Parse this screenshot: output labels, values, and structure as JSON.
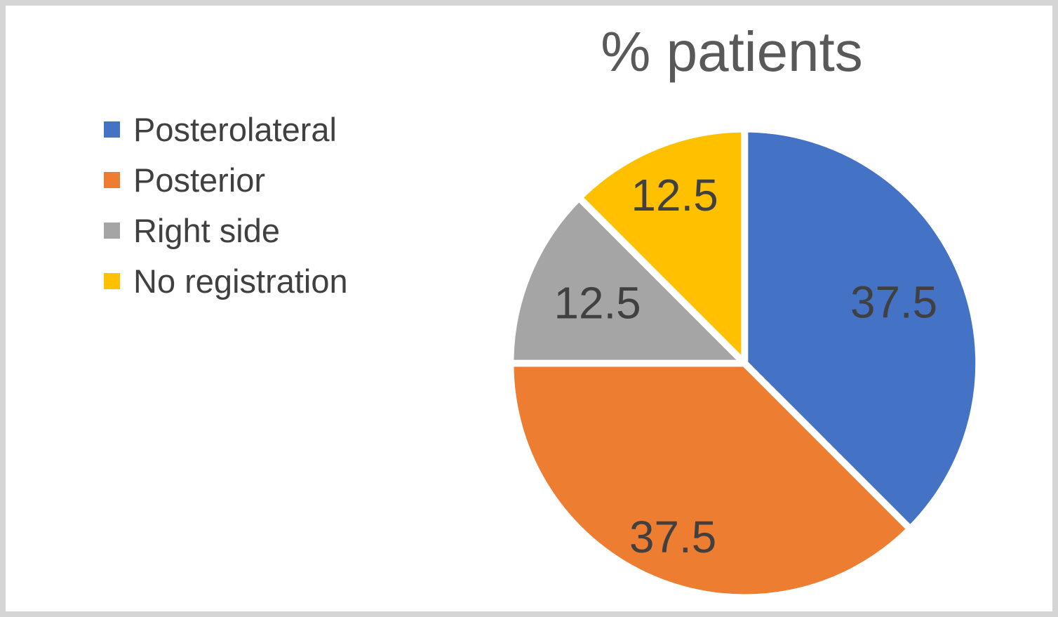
{
  "chart_data": {
    "type": "pie",
    "title": "% patients",
    "legend_position": "left",
    "start_angle_deg": -90,
    "direction": "clockwise",
    "separator_color": "#FFFFFF",
    "label_color": "#404040",
    "title_color": "#595959",
    "slices": [
      {
        "name": "Posterolateral",
        "value": 37.5,
        "label": "37.5",
        "color": "#4472C4",
        "label_radius": 0.69
      },
      {
        "name": "Posterior",
        "value": 37.5,
        "label": "37.5",
        "color": "#ED7D31",
        "label_radius": 0.8
      },
      {
        "name": "Right side",
        "value": 12.5,
        "label": "12.5",
        "color": "#A5A5A5",
        "label_radius": 0.68
      },
      {
        "name": "No registration",
        "value": 12.5,
        "label": "12.5",
        "color": "#FFC000",
        "label_radius": 0.78
      }
    ]
  }
}
